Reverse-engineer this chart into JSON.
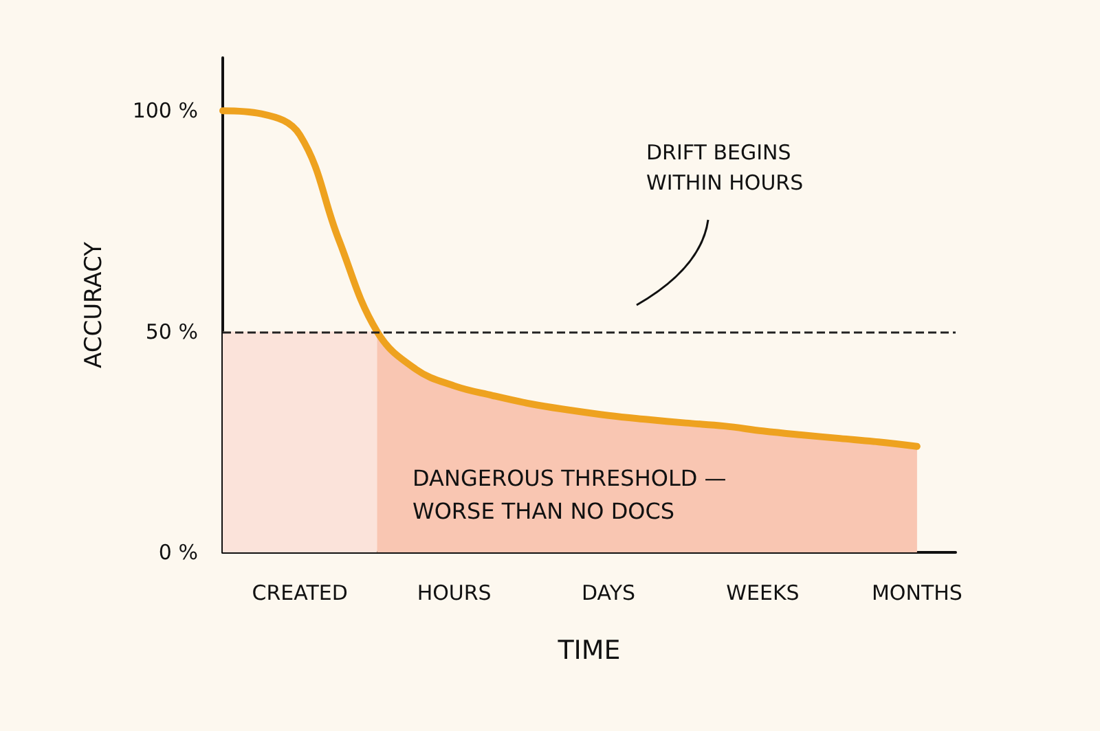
{
  "chart_data": {
    "type": "line",
    "xlabel": "TIME",
    "ylabel": "ACCURACY",
    "categories": [
      null,
      null,
      "CREATED",
      null,
      null,
      null,
      "HOURS",
      null,
      null,
      null,
      "DAYS",
      null,
      null,
      null,
      "WEEKS",
      null,
      null,
      null,
      "MONTHS",
      null
    ],
    "ylim": [
      0,
      112
    ],
    "yticks": [
      {
        "value": 0,
        "label": "0 %"
      },
      {
        "value": 50,
        "label": "50 %"
      },
      {
        "value": 100,
        "label": "100 %"
      }
    ],
    "series": [
      {
        "type": "area",
        "color": "#fbe3da",
        "values": [
          50,
          50,
          50,
          50,
          50,
          null,
          null,
          null,
          null,
          null,
          null,
          null,
          null,
          null,
          null,
          null,
          null,
          null,
          null,
          null
        ]
      },
      {
        "type": "area",
        "color": "#f9c6b2",
        "values": [
          null,
          null,
          null,
          null,
          50,
          41.5,
          37.7,
          35.5,
          33.6,
          32.2,
          31,
          30.1,
          29.3,
          28.6,
          27.5,
          26.6,
          25.8,
          25,
          24,
          null
        ]
      },
      {
        "color": "#eea21f",
        "values": [
          100,
          99.3,
          94.5,
          71,
          50,
          41.5,
          37.7,
          35.5,
          33.6,
          32.2,
          31,
          30.1,
          29.3,
          28.6,
          27.5,
          26.6,
          25.8,
          25,
          24,
          null
        ]
      }
    ],
    "ref_lines": [
      {
        "axis": "y",
        "value": 50,
        "label": null,
        "color": "#222222",
        "line_style": "dashed"
      }
    ],
    "annotations": [
      "DRIFT BEGINS WITHIN HOURS",
      "DANGEROUS THRESHOLD — WORSE THAN NO DOCS"
    ]
  }
}
